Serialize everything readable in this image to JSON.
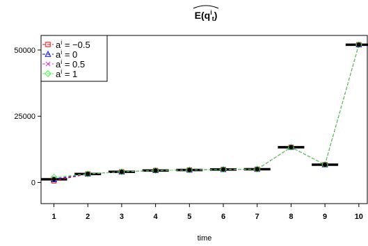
{
  "chart_data": {
    "type": "line",
    "title": "E(q_t^i)",
    "title_parts": {
      "main": "E(q",
      "subscript": "t",
      "superscript": "i",
      "close": ")"
    },
    "xlabel": "time",
    "ylabel": "",
    "x": [
      1,
      2,
      3,
      4,
      5,
      6,
      7,
      8,
      9,
      10
    ],
    "x_tick_labels": [
      "1",
      "2",
      "3",
      "4",
      "5",
      "6",
      "7",
      "8",
      "9",
      "10"
    ],
    "y_ticks": [
      0,
      25000,
      50000
    ],
    "y_tick_labels": [
      "0",
      "25000",
      "50000"
    ],
    "xlim": [
      0.62,
      10.25
    ],
    "ylim": [
      -8000,
      55500
    ],
    "grid": false,
    "legend": "top-left",
    "series": [
      {
        "name": "a = -0.5",
        "legend_parts": [
          "a",
          "i",
          " = −0.5"
        ],
        "marker": "square",
        "color": "#ff0000",
        "values": [
          600,
          3200,
          4000,
          4500,
          4700,
          4900,
          5000,
          13300,
          6700,
          52000
        ]
      },
      {
        "name": "a = 0",
        "legend_parts": [
          "a",
          "i",
          " = 0"
        ],
        "marker": "triangle",
        "color": "#0000ff",
        "values": [
          1100,
          3200,
          4000,
          4500,
          4700,
          4900,
          5000,
          13300,
          6700,
          52000
        ]
      },
      {
        "name": "a = 0.5",
        "legend_parts": [
          "a",
          "i",
          " = 0.5"
        ],
        "marker": "x",
        "color": "#cc33cc",
        "values": [
          1500,
          3200,
          4000,
          4500,
          4700,
          4900,
          5000,
          13300,
          6700,
          52000
        ]
      },
      {
        "name": "a = 1",
        "legend_parts": [
          "a",
          "i",
          " = 1"
        ],
        "marker": "diamond",
        "color": "#33ff33",
        "values": [
          2000,
          3200,
          4000,
          4500,
          4700,
          4900,
          5000,
          13300,
          6700,
          52000
        ]
      }
    ],
    "reference": {
      "marker": "circle",
      "color": "#000000",
      "values": [
        1200,
        3200,
        4000,
        4500,
        4700,
        4900,
        5000,
        13300,
        6700,
        52000
      ]
    }
  }
}
